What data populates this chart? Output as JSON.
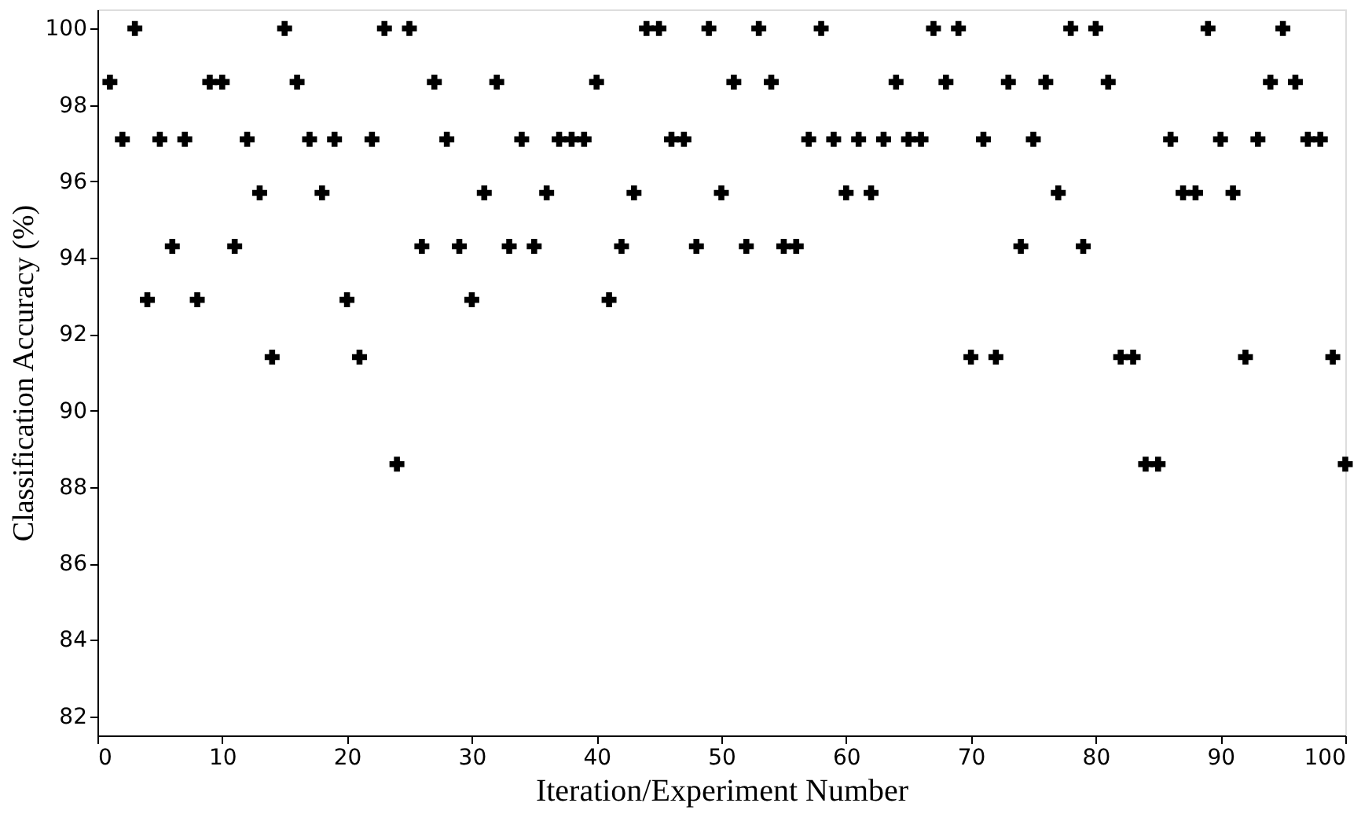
{
  "chart_data": {
    "type": "scatter",
    "xlabel": "Iteration/Experiment Number",
    "ylabel": "Classification Accuracy (%)",
    "x": [
      1,
      2,
      3,
      4,
      5,
      6,
      7,
      8,
      9,
      10,
      11,
      12,
      13,
      14,
      15,
      16,
      17,
      18,
      19,
      20,
      21,
      22,
      23,
      24,
      25,
      26,
      27,
      28,
      29,
      30,
      31,
      32,
      33,
      34,
      35,
      36,
      37,
      38,
      39,
      40,
      41,
      42,
      43,
      44,
      45,
      46,
      47,
      48,
      49,
      50,
      51,
      52,
      53,
      54,
      55,
      56,
      57,
      58,
      59,
      60,
      61,
      62,
      63,
      64,
      65,
      66,
      67,
      68,
      69,
      70,
      71,
      72,
      73,
      74,
      75,
      76,
      77,
      78,
      79,
      80,
      81,
      82,
      83,
      84,
      85,
      86,
      87,
      88,
      89,
      90,
      91,
      92,
      93,
      94,
      95,
      96,
      97,
      98,
      99,
      100
    ],
    "series": [
      {
        "color": "#000000",
        "values": [
          98.6,
          97.1,
          100,
          92.9,
          97.1,
          94.3,
          97.1,
          92.9,
          98.6,
          98.6,
          94.3,
          97.1,
          95.7,
          91.4,
          100,
          98.6,
          97.1,
          95.7,
          97.1,
          92.9,
          91.4,
          97.1,
          100,
          88.6,
          100,
          94.3,
          98.6,
          97.1,
          94.3,
          92.9,
          95.7,
          98.6,
          94.3,
          97.1,
          94.3,
          95.7,
          97.1,
          97.1,
          97.1,
          98.6,
          92.9,
          94.3,
          95.7,
          100,
          100,
          97.1,
          97.1,
          94.3,
          100,
          95.7,
          98.6,
          94.3,
          100,
          98.6,
          94.3,
          94.3,
          97.1,
          100,
          97.1,
          95.7,
          97.1,
          95.7,
          97.1,
          98.6,
          97.1,
          97.1,
          100,
          98.6,
          100,
          91.4,
          97.1,
          91.4,
          98.6,
          94.3,
          97.1,
          98.6,
          95.7,
          100,
          94.3,
          100,
          98.6,
          91.4,
          91.4,
          88.6,
          88.6,
          97.1,
          95.7,
          95.7,
          100,
          97.1,
          95.7,
          91.4,
          97.1,
          98.6,
          100,
          98.6,
          97.1,
          97.1,
          91.4,
          88.6
        ]
      }
    ],
    "marker": "cross",
    "grid": false,
    "xlim": [
      0,
      100
    ],
    "xticks": [
      0,
      10,
      20,
      30,
      40,
      50,
      60,
      70,
      80,
      90,
      100
    ],
    "ylim": [
      81.5,
      100.5
    ],
    "yticks": [
      82,
      84,
      86,
      88,
      90,
      92,
      94,
      96,
      98,
      100
    ]
  }
}
